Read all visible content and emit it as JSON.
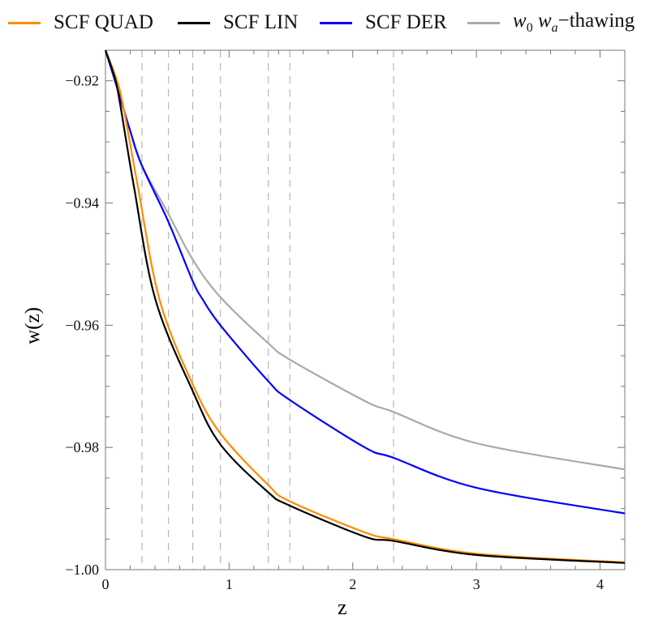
{
  "chart_data": {
    "type": "line",
    "title": "",
    "xlabel": "z",
    "ylabel": "w(z)",
    "xlim": [
      0,
      4.2
    ],
    "ylim": [
      -1.0,
      -0.915
    ],
    "x_ticks": [
      0,
      1,
      2,
      3,
      4
    ],
    "x_tick_labels": [
      "0",
      "1",
      "2",
      "3",
      "4"
    ],
    "y_ticks": [
      -1.0,
      -0.98,
      -0.96,
      -0.94,
      -0.92
    ],
    "y_tick_labels": [
      "−1.00",
      "−0.98",
      "−0.96",
      "−0.94",
      "−0.92"
    ],
    "grid": false,
    "legend_position": "top",
    "vertical_dashed_lines_z": [
      0.295,
      0.51,
      0.706,
      0.93,
      1.317,
      1.491,
      2.33
    ],
    "series": [
      {
        "name": "SCF QUAD",
        "color": "#ff8c00",
        "points": [
          [
            0,
            -0.915
          ],
          [
            0.087,
            -0.9196
          ],
          [
            0.142,
            -0.924
          ],
          [
            0.262,
            -0.9373
          ],
          [
            0.437,
            -0.9558
          ],
          [
            0.704,
            -0.9696
          ],
          [
            0.929,
            -0.9777
          ],
          [
            1.314,
            -0.9861
          ],
          [
            1.489,
            -0.9888
          ],
          [
            2.098,
            -0.9939
          ],
          [
            2.33,
            -0.995
          ],
          [
            3.0,
            -0.9974
          ],
          [
            4.2,
            -0.9988
          ]
        ]
      },
      {
        "name": "SCF LIN",
        "color": "#000000",
        "points": [
          [
            0,
            -0.915
          ],
          [
            0.077,
            -0.9196
          ],
          [
            0.12,
            -0.924
          ],
          [
            0.23,
            -0.9373
          ],
          [
            0.404,
            -0.9558
          ],
          [
            0.704,
            -0.9707
          ],
          [
            0.929,
            -0.9795
          ],
          [
            1.314,
            -0.9873
          ],
          [
            1.489,
            -0.9895
          ],
          [
            2.098,
            -0.9946
          ],
          [
            2.33,
            -0.9953
          ],
          [
            3.0,
            -0.9976
          ],
          [
            4.2,
            -0.9989
          ]
        ]
      },
      {
        "name": "SCF DER",
        "color": "#0000ff",
        "points": [
          [
            0,
            -0.915
          ],
          [
            0.1,
            -0.9215
          ],
          [
            0.197,
            -0.928
          ],
          [
            0.291,
            -0.9337
          ],
          [
            0.507,
            -0.943
          ],
          [
            0.704,
            -0.9527
          ],
          [
            0.787,
            -0.9558
          ],
          [
            0.929,
            -0.96
          ],
          [
            1.314,
            -0.9691
          ],
          [
            1.489,
            -0.9722
          ],
          [
            2.098,
            -0.98
          ],
          [
            2.33,
            -0.9817
          ],
          [
            3.0,
            -0.9866
          ],
          [
            4.2,
            -0.9908
          ]
        ]
      },
      {
        "name": "w0 wa −thawing",
        "color": "#aaaaaa",
        "points": [
          [
            0,
            -0.915
          ],
          [
            0.1,
            -0.9215
          ],
          [
            0.197,
            -0.928
          ],
          [
            0.291,
            -0.9337
          ],
          [
            0.507,
            -0.9417
          ],
          [
            0.704,
            -0.9492
          ],
          [
            0.929,
            -0.9554
          ],
          [
            1.314,
            -0.9629
          ],
          [
            1.489,
            -0.9656
          ],
          [
            2.098,
            -0.9724
          ],
          [
            2.33,
            -0.9742
          ],
          [
            3.0,
            -0.9793
          ],
          [
            4.2,
            -0.9836
          ]
        ]
      }
    ]
  },
  "legend": [
    {
      "label": "SCF QUAD",
      "color": "#ff8c00"
    },
    {
      "label": "SCF LIN",
      "color": "#000000"
    },
    {
      "label": "SCF DER",
      "color": "#0000ff"
    },
    {
      "label_w0": "w",
      "sub0": "0",
      "label_wa": "w",
      "suba": "a",
      "suffix": "−thawing",
      "color": "#aaaaaa"
    }
  ]
}
